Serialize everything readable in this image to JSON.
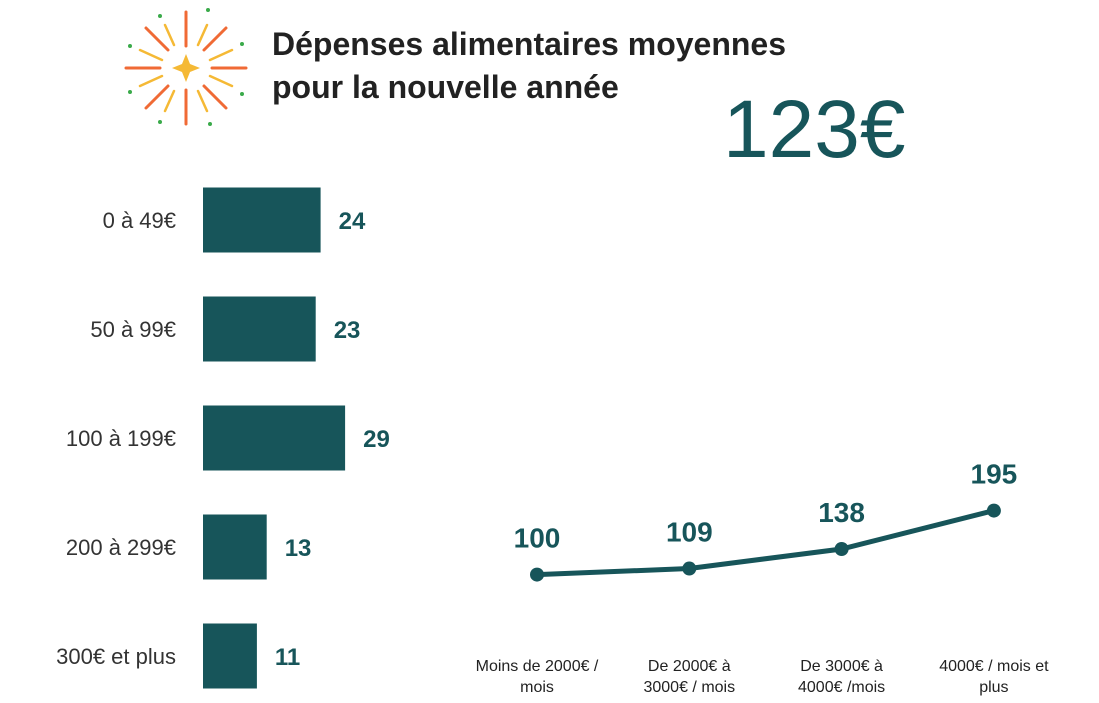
{
  "title_lines": [
    "Dépenses alimentaires moyennes",
    "pour la nouvelle année"
  ],
  "highlight": "123€",
  "chart_data": [
    {
      "type": "hbar",
      "color": "#17555a",
      "categories": [
        "0 à 49€",
        "50 à 99€",
        "100 à 199€",
        "200 à 299€",
        "300€ et plus"
      ],
      "values": [
        24,
        23,
        29,
        13,
        11
      ]
    },
    {
      "type": "line",
      "color": "#17555a",
      "categories": [
        "Moins de 2000€ / mois",
        "De 2000€ à 3000€ / mois",
        "De 3000€ à 4000€ /mois",
        "4000€  / mois et plus"
      ],
      "values": [
        100,
        109,
        138,
        195
      ]
    }
  ]
}
